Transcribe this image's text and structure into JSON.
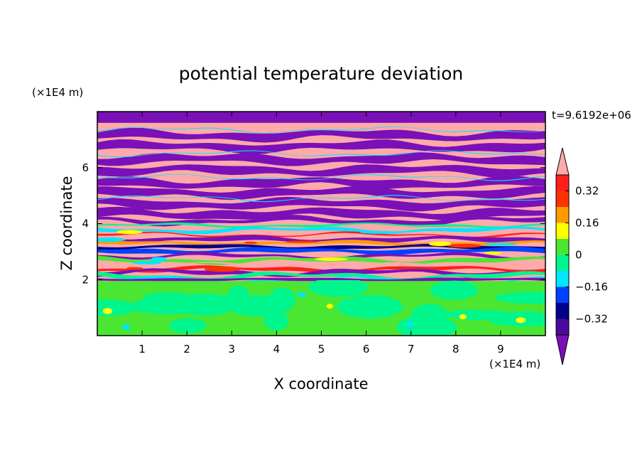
{
  "chart_data": {
    "type": "heatmap",
    "title": "potential temperature deviation",
    "xlabel": "X coordinate",
    "ylabel": "Z coordinate",
    "x_unit": "(×1E4 m)",
    "y_unit": "(×1E4 m)",
    "time_label": "t=9.6192e+06",
    "xlim": [
      0,
      10
    ],
    "ylim": [
      0,
      8
    ],
    "x_ticks": [
      "1",
      "2",
      "3",
      "4",
      "5",
      "6",
      "7",
      "8",
      "9"
    ],
    "y_ticks": [
      "2",
      "4",
      "6"
    ],
    "colorbar": {
      "levels": [
        -0.4,
        -0.32,
        -0.24,
        -0.16,
        -0.08,
        0,
        0.08,
        0.16,
        0.24,
        0.32,
        0.4
      ],
      "colors": [
        "#4b0b9b",
        "#00008c",
        "#0041ff",
        "#00e6ff",
        "#00f58c",
        "#4be632",
        "#ffff00",
        "#ff9b00",
        "#ff3200",
        "#ff1e1e",
        "#ffaaaa"
      ],
      "under_color": "#7a10b8",
      "over_color": "#ffaaaa",
      "tick_labels": [
        "0.32",
        "0.16",
        "0",
        "−0.16",
        "−0.32"
      ]
    },
    "bands": [
      {
        "zmin": 0,
        "zmax": 1.9,
        "pattern": "lower-turbulent",
        "dominant_colors": [
          "#4be632",
          "#00f58c",
          "#ffff00"
        ]
      },
      {
        "zmin": 1.9,
        "zmax": 4.0,
        "pattern": "mixed-layer",
        "dominant_colors": [
          "#ffaaaa",
          "#7a10b8",
          "#00f58c",
          "#ff1e1e",
          "#00e6ff"
        ]
      },
      {
        "zmin": 4.0,
        "zmax": 8.0,
        "pattern": "alternating-stripes",
        "dominant_colors": [
          "#ffaaaa",
          "#7a10b8"
        ]
      }
    ]
  }
}
